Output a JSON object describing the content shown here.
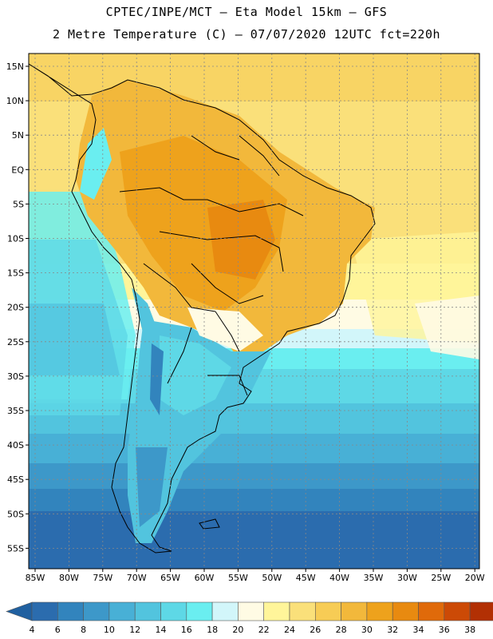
{
  "header": {
    "line1": "CPTEC/INPE/MCT –  Eta Model 15km – GFS",
    "line2": "2 Metre Temperature (C) – 07/07/2020 12UTC fct=220h"
  },
  "map": {
    "lat_labels": [
      "15N",
      "10N",
      "5N",
      "EQ",
      "5S",
      "10S",
      "15S",
      "20S",
      "25S",
      "30S",
      "35S",
      "40S",
      "45S",
      "50S",
      "55S"
    ],
    "lon_labels": [
      "85W",
      "80W",
      "75W",
      "70W",
      "65W",
      "60W",
      "55W",
      "50W",
      "45W",
      "40W",
      "35W",
      "30W",
      "25W",
      "20W"
    ]
  },
  "colorbar": {
    "labels": [
      "4",
      "6",
      "8",
      "10",
      "12",
      "14",
      "16",
      "18",
      "20",
      "22",
      "24",
      "26",
      "28",
      "30",
      "32",
      "34",
      "36",
      "38"
    ],
    "colors": [
      "#2b6cae",
      "#3284bd",
      "#3d98c9",
      "#48b0d6",
      "#52c4de",
      "#5ed8e6",
      "#6aeef0",
      "#d2f6fa",
      "#fffbe4",
      "#fff59a",
      "#fae07a",
      "#f7cc55",
      "#f2b83b",
      "#eea21c",
      "#e88a10",
      "#e06a0a",
      "#cc4a06",
      "#b23004"
    ],
    "low_arrow_color": "#2060a0",
    "high_arrow_color": "#a02a04"
  }
}
